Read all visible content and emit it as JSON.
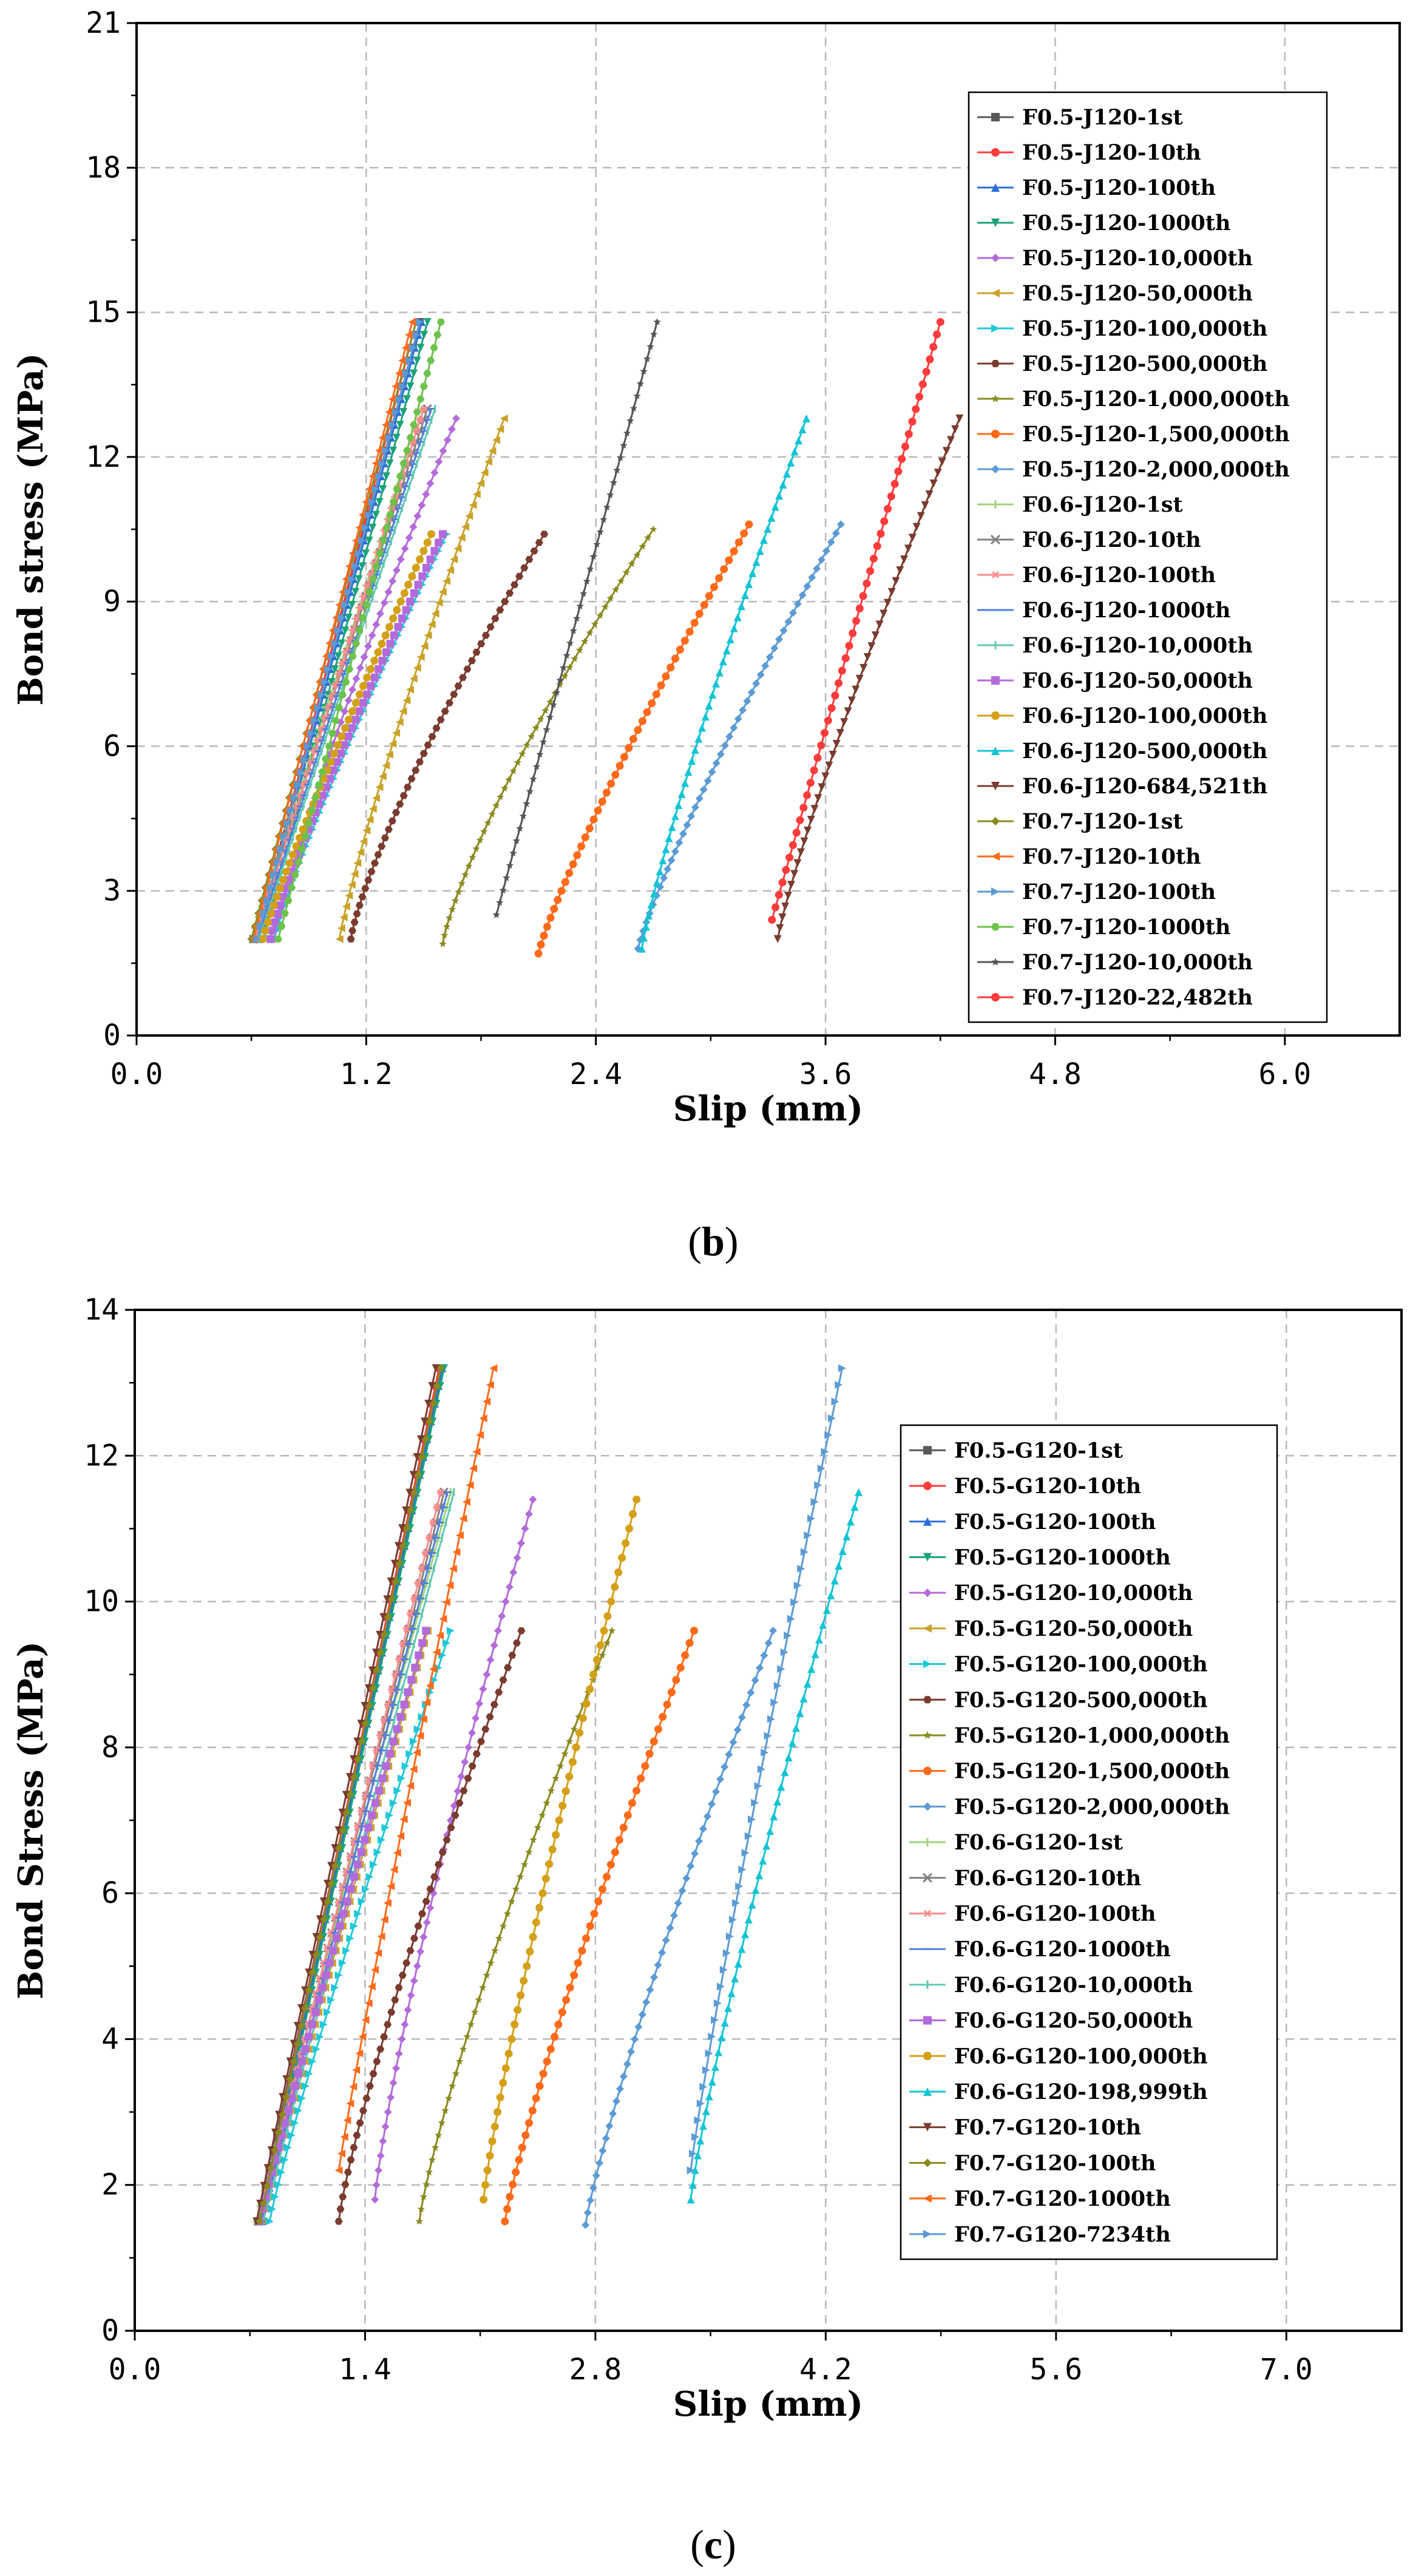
{
  "chart_data": [
    {
      "type": "line",
      "panel_label": "b",
      "xlabel": "Slip (mm)",
      "ylabel": "Bond stress (MPa)",
      "xlim": [
        0,
        6.6
      ],
      "ylim": [
        0,
        21
      ],
      "xticks": [
        "0.0",
        "1.2",
        "2.4",
        "3.6",
        "4.8",
        "6.0"
      ],
      "xtick_values": [
        0,
        1.2,
        2.4,
        3.6,
        4.8,
        6.0
      ],
      "yticks": [
        "0",
        "3",
        "6",
        "9",
        "12",
        "15",
        "18",
        "21"
      ],
      "ytick_values": [
        0,
        3,
        6,
        9,
        12,
        15,
        18,
        21
      ],
      "grid": true,
      "legend_position": "right",
      "series": [
        {
          "name": "F0.5-J120-1st",
          "color": "#595959",
          "marker": "square",
          "x0": 0.62,
          "y0": 2.0,
          "x1": 1.48,
          "y1": 14.8,
          "p": 1.0
        },
        {
          "name": "F0.5-J120-10th",
          "color": "#ff3b3b",
          "marker": "circle",
          "x0": 0.63,
          "y0": 2.0,
          "x1": 1.46,
          "y1": 14.8,
          "p": 1.0
        },
        {
          "name": "F0.5-J120-100th",
          "color": "#2a6fd6",
          "marker": "triangle-up",
          "x0": 0.64,
          "y0": 2.0,
          "x1": 1.49,
          "y1": 14.8,
          "p": 1.0
        },
        {
          "name": "F0.5-J120-1000th",
          "color": "#1aa37a",
          "marker": "triangle-down",
          "x0": 0.66,
          "y0": 2.0,
          "x1": 1.52,
          "y1": 14.8,
          "p": 1.0
        },
        {
          "name": "F0.5-J120-10,000th",
          "color": "#b36bdb",
          "marker": "diamond",
          "x0": 0.72,
          "y0": 2.0,
          "x1": 1.67,
          "y1": 12.8,
          "p": 1.15
        },
        {
          "name": "F0.5-J120-50,000th",
          "color": "#c9a227",
          "marker": "triangle-left",
          "x0": 1.06,
          "y0": 2.0,
          "x1": 1.92,
          "y1": 12.8,
          "p": 1.15
        },
        {
          "name": "F0.5-J120-100,000th",
          "color": "#1ec8d8",
          "marker": "triangle-right",
          "x0": 0.72,
          "y0": 2.0,
          "x1": 1.62,
          "y1": 10.4,
          "p": 1.15
        },
        {
          "name": "F0.5-J120-500,000th",
          "color": "#7a3b2e",
          "marker": "hexagon",
          "x0": 1.12,
          "y0": 2.0,
          "x1": 2.13,
          "y1": 10.4,
          "p": 1.25
        },
        {
          "name": "F0.5-J120-1,000,000th",
          "color": "#8a8a1e",
          "marker": "star",
          "x0": 1.6,
          "y0": 1.9,
          "x1": 2.7,
          "y1": 10.5,
          "p": 1.25
        },
        {
          "name": "F0.5-J120-1,500,000th",
          "color": "#ff6a1a",
          "marker": "circle",
          "x0": 2.1,
          "y0": 1.7,
          "x1": 3.2,
          "y1": 10.6,
          "p": 1.15
        },
        {
          "name": "F0.5-J120-2,000,000th",
          "color": "#5b9bd5",
          "marker": "diamond",
          "x0": 2.62,
          "y0": 1.8,
          "x1": 3.68,
          "y1": 10.6,
          "p": 1.15
        },
        {
          "name": "F0.6-J120-1st",
          "color": "#9fd37a",
          "marker": "plus",
          "x0": 0.6,
          "y0": 2.0,
          "x1": 1.5,
          "y1": 13.0,
          "p": 1.0
        },
        {
          "name": "F0.6-J120-10th",
          "color": "#7f7f7f",
          "marker": "x",
          "x0": 0.61,
          "y0": 2.0,
          "x1": 1.52,
          "y1": 13.0,
          "p": 1.0
        },
        {
          "name": "F0.6-J120-100th",
          "color": "#ff8c8c",
          "marker": "asterisk",
          "x0": 0.62,
          "y0": 2.0,
          "x1": 1.5,
          "y1": 13.0,
          "p": 1.0
        },
        {
          "name": "F0.6-J120-1000th",
          "color": "#4c7fe0",
          "marker": "dash",
          "x0": 0.63,
          "y0": 2.0,
          "x1": 1.54,
          "y1": 13.0,
          "p": 1.0
        },
        {
          "name": "F0.6-J120-10,000th",
          "color": "#5fc9b2",
          "marker": "pipe",
          "x0": 0.64,
          "y0": 2.0,
          "x1": 1.56,
          "y1": 13.0,
          "p": 1.0
        },
        {
          "name": "F0.6-J120-50,000th",
          "color": "#b36bdb",
          "marker": "square",
          "x0": 0.7,
          "y0": 2.0,
          "x1": 1.6,
          "y1": 10.4,
          "p": 1.15
        },
        {
          "name": "F0.6-J120-100,000th",
          "color": "#d4a017",
          "marker": "circle",
          "x0": 0.66,
          "y0": 2.0,
          "x1": 1.54,
          "y1": 10.4,
          "p": 1.1
        },
        {
          "name": "F0.6-J120-500,000th",
          "color": "#14c4d4",
          "marker": "triangle-up",
          "x0": 2.64,
          "y0": 1.8,
          "x1": 3.5,
          "y1": 12.8,
          "p": 1.15
        },
        {
          "name": "F0.6-J120-684,521th",
          "color": "#7a3b2e",
          "marker": "triangle-down",
          "x0": 3.35,
          "y0": 2.0,
          "x1": 4.3,
          "y1": 12.8,
          "p": 1.15
        },
        {
          "name": "F0.7-J120-1st",
          "color": "#8a8a1e",
          "marker": "diamond",
          "x0": 0.6,
          "y0": 2.0,
          "x1": 1.46,
          "y1": 14.8,
          "p": 1.0
        },
        {
          "name": "F0.7-J120-10th",
          "color": "#ff6a1a",
          "marker": "triangle-left",
          "x0": 0.61,
          "y0": 2.0,
          "x1": 1.44,
          "y1": 14.8,
          "p": 1.0
        },
        {
          "name": "F0.7-J120-100th",
          "color": "#5b9bd5",
          "marker": "triangle-right",
          "x0": 0.63,
          "y0": 2.0,
          "x1": 1.48,
          "y1": 14.8,
          "p": 1.0
        },
        {
          "name": "F0.7-J120-1000th",
          "color": "#6cc24a",
          "marker": "hexagon",
          "x0": 0.74,
          "y0": 2.0,
          "x1": 1.59,
          "y1": 14.8,
          "p": 1.0
        },
        {
          "name": "F0.7-J120-10,000th",
          "color": "#555555",
          "marker": "star",
          "x0": 1.88,
          "y0": 2.5,
          "x1": 2.72,
          "y1": 14.8,
          "p": 1.0
        },
        {
          "name": "F0.7-J120-22,482th",
          "color": "#ff3b3b",
          "marker": "circle",
          "x0": 3.32,
          "y0": 2.4,
          "x1": 4.2,
          "y1": 14.8,
          "p": 1.0
        }
      ]
    },
    {
      "type": "line",
      "panel_label": "c",
      "xlabel": "Slip (mm)",
      "ylabel": "Bond Stress (MPa)",
      "xlim": [
        0,
        7.7
      ],
      "ylim": [
        0,
        14
      ],
      "xticks": [
        "0.0",
        "1.4",
        "2.8",
        "4.2",
        "5.6",
        "7.0"
      ],
      "xtick_values": [
        0,
        1.4,
        2.8,
        4.2,
        5.6,
        7.0
      ],
      "yticks": [
        "0",
        "2",
        "4",
        "6",
        "8",
        "10",
        "12",
        "14"
      ],
      "ytick_values": [
        0,
        2,
        4,
        6,
        8,
        10,
        12,
        14
      ],
      "grid": true,
      "legend_position": "right",
      "series": [
        {
          "name": "F0.5-G120-1st",
          "color": "#595959",
          "marker": "square",
          "x0": 0.75,
          "y0": 1.5,
          "x1": 1.86,
          "y1": 13.2,
          "p": 1.0
        },
        {
          "name": "F0.5-G120-10th",
          "color": "#ff3b3b",
          "marker": "circle",
          "x0": 0.76,
          "y0": 1.5,
          "x1": 1.85,
          "y1": 13.2,
          "p": 1.0
        },
        {
          "name": "F0.5-G120-100th",
          "color": "#2a6fd6",
          "marker": "triangle-up",
          "x0": 0.77,
          "y0": 1.5,
          "x1": 1.87,
          "y1": 13.2,
          "p": 1.0
        },
        {
          "name": "F0.5-G120-1000th",
          "color": "#1aa37a",
          "marker": "triangle-down",
          "x0": 0.78,
          "y0": 1.5,
          "x1": 1.88,
          "y1": 13.2,
          "p": 1.0
        },
        {
          "name": "F0.5-G120-10,000th",
          "color": "#b36bdb",
          "marker": "diamond",
          "x0": 1.46,
          "y0": 1.8,
          "x1": 2.42,
          "y1": 11.4,
          "p": 1.2
        },
        {
          "name": "F0.5-G120-50,000th",
          "color": "#c9a227",
          "marker": "triangle-left",
          "x0": 0.78,
          "y0": 1.5,
          "x1": 1.78,
          "y1": 9.6,
          "p": 1.05
        },
        {
          "name": "F0.5-G120-100,000th",
          "color": "#1ec8d8",
          "marker": "triangle-right",
          "x0": 0.82,
          "y0": 1.5,
          "x1": 1.92,
          "y1": 9.6,
          "p": 1.1
        },
        {
          "name": "F0.5-G120-500,000th",
          "color": "#7a3b2e",
          "marker": "hexagon",
          "x0": 1.24,
          "y0": 1.5,
          "x1": 2.35,
          "y1": 9.6,
          "p": 1.2
        },
        {
          "name": "F0.5-G120-1,000,000th",
          "color": "#8a8a1e",
          "marker": "star",
          "x0": 1.73,
          "y0": 1.5,
          "x1": 2.9,
          "y1": 9.6,
          "p": 1.2
        },
        {
          "name": "F0.5-G120-1,500,000th",
          "color": "#ff6a1a",
          "marker": "circle",
          "x0": 2.25,
          "y0": 1.5,
          "x1": 3.4,
          "y1": 9.6,
          "p": 1.15
        },
        {
          "name": "F0.5-G120-2,000,000th",
          "color": "#5b9bd5",
          "marker": "diamond",
          "x0": 2.74,
          "y0": 1.45,
          "x1": 3.88,
          "y1": 9.6,
          "p": 1.15
        },
        {
          "name": "F0.6-G120-1st",
          "color": "#9fd37a",
          "marker": "plus",
          "x0": 0.74,
          "y0": 1.5,
          "x1": 1.92,
          "y1": 11.5,
          "p": 1.0
        },
        {
          "name": "F0.6-G120-10th",
          "color": "#7f7f7f",
          "marker": "x",
          "x0": 0.75,
          "y0": 1.5,
          "x1": 1.88,
          "y1": 11.5,
          "p": 1.0
        },
        {
          "name": "F0.6-G120-100th",
          "color": "#ff8c8c",
          "marker": "asterisk",
          "x0": 0.76,
          "y0": 1.5,
          "x1": 1.86,
          "y1": 11.5,
          "p": 1.0
        },
        {
          "name": "F0.6-G120-1000th",
          "color": "#4c7fe0",
          "marker": "dash",
          "x0": 0.77,
          "y0": 1.5,
          "x1": 1.9,
          "y1": 11.5,
          "p": 1.0
        },
        {
          "name": "F0.6-G120-10,000th",
          "color": "#5fc9b2",
          "marker": "pipe",
          "x0": 0.78,
          "y0": 1.5,
          "x1": 1.94,
          "y1": 11.5,
          "p": 1.0
        },
        {
          "name": "F0.6-G120-50,000th",
          "color": "#b36bdb",
          "marker": "square",
          "x0": 0.76,
          "y0": 1.5,
          "x1": 1.77,
          "y1": 9.6,
          "p": 1.05
        },
        {
          "name": "F0.6-G120-100,000th",
          "color": "#d4a017",
          "marker": "circle",
          "x0": 2.12,
          "y0": 1.8,
          "x1": 3.05,
          "y1": 11.4,
          "p": 1.15
        },
        {
          "name": "F0.6-G120-198,999th",
          "color": "#14c4d4",
          "marker": "triangle-up",
          "x0": 3.38,
          "y0": 1.8,
          "x1": 4.4,
          "y1": 11.5,
          "p": 1.15
        },
        {
          "name": "F0.7-G120-10th",
          "color": "#7a3b2e",
          "marker": "triangle-down",
          "x0": 0.74,
          "y0": 1.5,
          "x1": 1.83,
          "y1": 13.2,
          "p": 1.0
        },
        {
          "name": "F0.7-G120-100th",
          "color": "#8a8a1e",
          "marker": "diamond",
          "x0": 0.76,
          "y0": 1.5,
          "x1": 1.86,
          "y1": 13.2,
          "p": 1.0
        },
        {
          "name": "F0.7-G120-1000th",
          "color": "#ff6a1a",
          "marker": "triangle-left",
          "x0": 1.24,
          "y0": 2.2,
          "x1": 2.18,
          "y1": 13.2,
          "p": 1.05
        },
        {
          "name": "F0.7-G120-7234th",
          "color": "#5b9bd5",
          "marker": "triangle-right",
          "x0": 3.38,
          "y0": 2.2,
          "x1": 4.3,
          "y1": 13.2,
          "p": 1.1
        }
      ]
    }
  ]
}
